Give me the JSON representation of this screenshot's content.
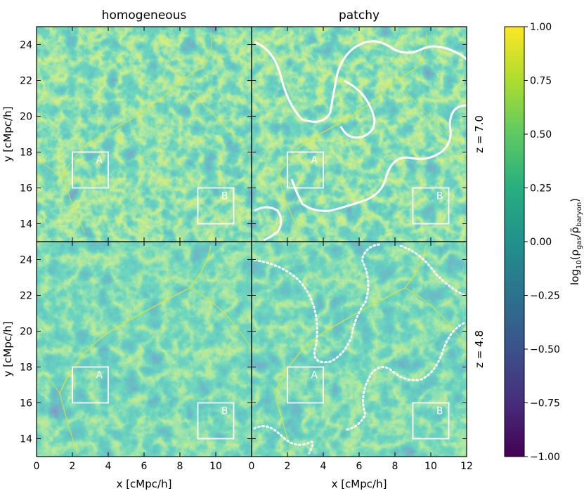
{
  "chart_data": {
    "type": "heatmap",
    "layout": "2x2 panel grid",
    "column_titles": [
      "homogeneous",
      "patchy"
    ],
    "row_labels": [
      "z = 7.0",
      "z = 4.8"
    ],
    "xlabel": "x [cMpc/h]",
    "ylabel": "y [cMpc/h]",
    "xlim": [
      0,
      12
    ],
    "ylim": [
      13,
      25
    ],
    "x_ticks": [
      0,
      2,
      4,
      6,
      8,
      10,
      12
    ],
    "y_ticks": [
      14,
      16,
      18,
      20,
      22,
      24
    ],
    "colorbar": {
      "label": "log10(ρgas/ρ̄baryon)",
      "label_main": "log",
      "label_sub": "10",
      "label_rest": "(ρ",
      "label_gas": "gas",
      "label_slash": "/ρ̄",
      "label_baryon": "baryon",
      "label_close": ")",
      "range": [
        -1.0,
        1.0
      ],
      "ticks": [
        -1.0,
        -0.75,
        -0.5,
        -0.25,
        0.0,
        0.25,
        0.5,
        0.75,
        1.0
      ],
      "tick_labels": [
        "−1.00",
        "−0.75",
        "−0.50",
        "−0.25",
        "0.00",
        "0.25",
        "0.50",
        "0.75",
        "1.00"
      ],
      "colormap": "viridis"
    },
    "regions": [
      {
        "label": "A",
        "x": [
          2,
          4
        ],
        "y": [
          16,
          18
        ]
      },
      {
        "label": "B",
        "x": [
          9,
          11
        ],
        "y": [
          14,
          16
        ]
      }
    ],
    "ionization_front": {
      "z7_style": "solid white contour",
      "z48_style": "dotted white contour"
    },
    "colors": {
      "viridis_low": "#440154",
      "viridis_mid": "#21918c",
      "viridis_high": "#fde725",
      "contour": "#ffffff",
      "box": "#ffffff"
    }
  }
}
